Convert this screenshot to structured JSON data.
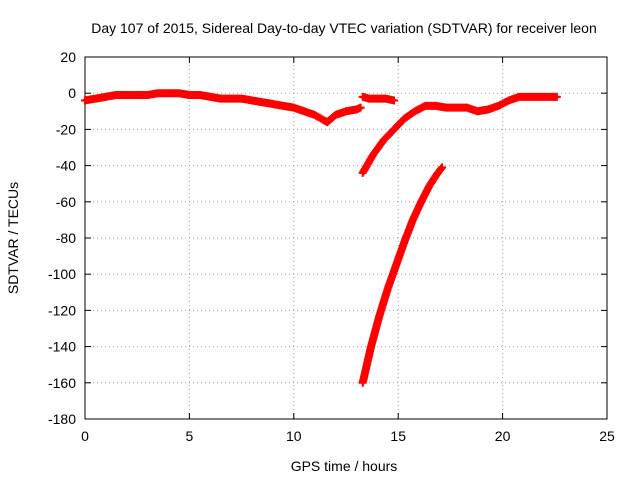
{
  "chart_data": {
    "type": "scatter",
    "title": "Day 107 of 2015, Sidereal Day-to-day VTEC variation (SDTVAR) for receiver leon",
    "xlabel": "GPS time / hours",
    "ylabel": "SDTVAR / TECUs",
    "xlim": [
      0,
      25
    ],
    "ylim": [
      -180,
      20
    ],
    "xticks": [
      0,
      5,
      10,
      15,
      20,
      25
    ],
    "yticks": [
      20,
      0,
      -20,
      -40,
      -60,
      -80,
      -100,
      -120,
      -140,
      -160,
      -180
    ],
    "grid": true,
    "marker": "plus",
    "color": "#ff0000",
    "series": [
      {
        "x": [
          0,
          0.5,
          1,
          1.5,
          2,
          2.5,
          3,
          3.5,
          4,
          4.5,
          5,
          5.5,
          6,
          6.5,
          7,
          7.5,
          8,
          8.5,
          9,
          9.5,
          10,
          10.5,
          11,
          11.3,
          11.6,
          12,
          12.5,
          13,
          13.2
        ],
        "y": [
          -4,
          -3,
          -2,
          -1,
          -1,
          -1,
          -1,
          0,
          0,
          0,
          -1,
          -1,
          -2,
          -3,
          -3,
          -3,
          -4,
          -5,
          -6,
          -7,
          -8,
          -10,
          -12,
          -14,
          -16,
          -12,
          -10,
          -9,
          -8
        ]
      },
      {
        "x": [
          13.3,
          13.6,
          14,
          14.4,
          14.8
        ],
        "y": [
          -2,
          -3,
          -3,
          -3,
          -4
        ]
      },
      {
        "x": [
          13.3,
          13.8,
          14.3,
          14.8,
          15.3,
          15.8,
          16.3,
          16.8,
          17.3,
          17.8,
          18.3,
          18.8,
          19.3,
          19.8,
          20.3,
          20.8,
          21.3,
          21.8,
          22.3,
          22.6
        ],
        "y": [
          -44,
          -34,
          -26,
          -20,
          -14,
          -10,
          -7,
          -7,
          -8,
          -8,
          -8,
          -10,
          -9,
          -7,
          -4,
          -2,
          -2,
          -2,
          -2,
          -2
        ]
      },
      {
        "x": [
          13.3,
          13.7,
          14.1,
          14.5,
          14.9,
          15.3,
          15.7,
          16.1,
          16.5,
          16.9,
          17.1
        ],
        "y": [
          -160,
          -140,
          -123,
          -108,
          -95,
          -82,
          -70,
          -60,
          -51,
          -44,
          -41
        ]
      }
    ]
  }
}
